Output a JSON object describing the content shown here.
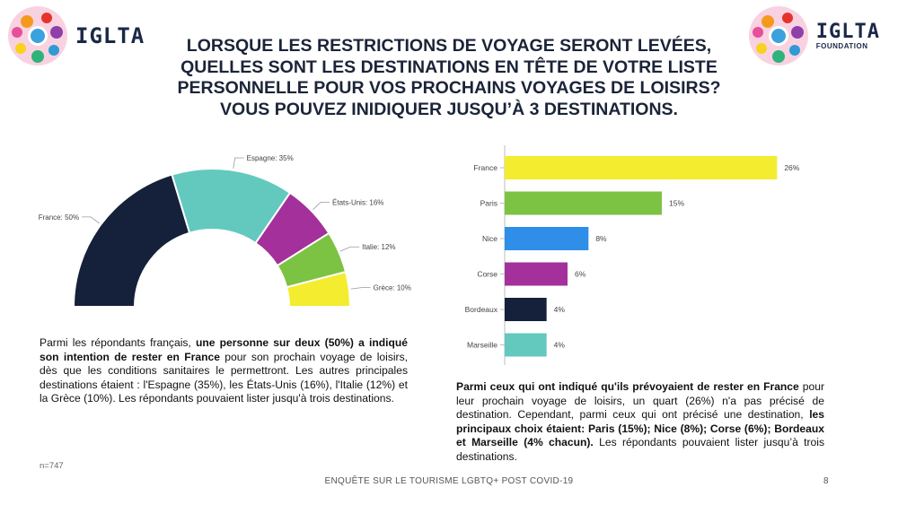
{
  "logos": {
    "left_text": "IGLTA",
    "right_text": "IGLTA",
    "right_subtext": "FOUNDATION"
  },
  "title_lines": [
    "LORSQUE LES RESTRICTIONS DE VOYAGE SERONT LEVÉES,",
    "QUELLES SONT LES DESTINATIONS EN TÊTE DE VOTRE LISTE",
    "PERSONNELLE POUR VOS PROCHAINS VOYAGES DE LOISIRS?",
    "VOUS POUVEZ INIDIQUER JUSQU’À 3 DESTINATIONS."
  ],
  "chart_data": [
    {
      "type": "pie",
      "title": "",
      "categories": [
        "France",
        "Espagne",
        "États-Unis",
        "Italie",
        "Grèce"
      ],
      "values": [
        50,
        35,
        16,
        12,
        10
      ],
      "labels": [
        "France: 50%",
        "Espagne: 35%",
        "États-Unis: 16%",
        "Italie: 12%",
        "Grèce: 10%"
      ],
      "colors": [
        "#15203a",
        "#63c9bf",
        "#a4309c",
        "#7cc243",
        "#f4ec2e"
      ],
      "unit": "%"
    },
    {
      "type": "bar",
      "orientation": "horizontal",
      "title": "",
      "categories": [
        "France",
        "Paris",
        "Nice",
        "Corse",
        "Bordeaux",
        "Marseille"
      ],
      "values": [
        26,
        15,
        8,
        6,
        4,
        4
      ],
      "value_labels": [
        "26%",
        "15%",
        "8%",
        "6%",
        "4%",
        "4%"
      ],
      "colors": [
        "#f4ec2e",
        "#7cc243",
        "#2e8ee8",
        "#a4309c",
        "#15203a",
        "#63c9bf"
      ],
      "xlim": [
        0,
        30
      ],
      "unit": "%"
    }
  ],
  "left_text": {
    "p1": "Parmi les répondants français, ",
    "p1_bold": "une personne sur deux (50%) a indiqué son intention de rester en France",
    "p2": " pour son prochain voyage de loisirs, dès que les conditions sanitaires le permettront. Les autres principales destinations étaient : l'Espagne (35%), les États-Unis (16%), l'Italie (12%) et la Grèce (10%). Les répondants pouvaient lister jusqu'à trois destinations."
  },
  "right_text": {
    "p1_bold": "Parmi ceux qui ont indiqué qu'ils prévoyaient de rester en France",
    "p2": " pour leur prochain voyage de loisirs, un quart (26%) n'a pas précisé de destination. Cependant, parmi ceux qui ont précisé une destination, ",
    "p3_bold": "les principaux choix étaient: Paris (15%); Nice (8%); Corse (6%); Bordeaux et Marseille (4% chacun).",
    "p4": " Les répondants pouvaient lister jusqu’à trois destinations."
  },
  "sample_note": "n=747",
  "footer": "ENQUÊTE SUR LE TOURISME LGBTQ+ POST COVID-19",
  "page_number": "8"
}
